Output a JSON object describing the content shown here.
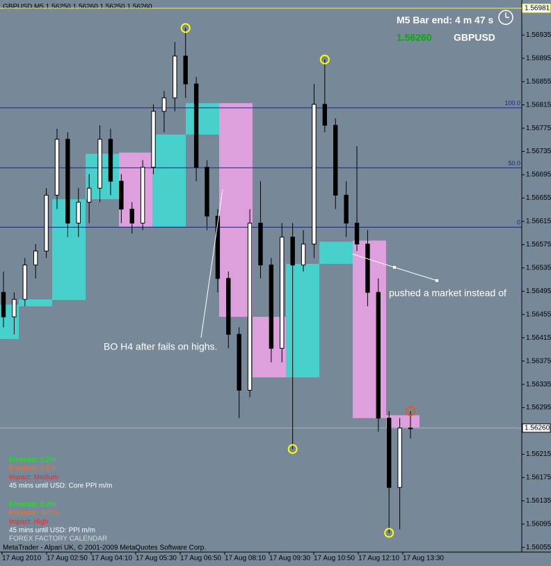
{
  "chart_data": {
    "type": "candlestick",
    "title": "GBPUSD,M5  1.56250 1.56260 1.56250 1.56260",
    "ylim": [
      1.56047,
      1.56988
    ],
    "yticks": [
      1.56935,
      1.56895,
      1.56855,
      1.56815,
      1.56775,
      1.56735,
      1.56695,
      1.56655,
      1.56615,
      1.56575,
      1.56535,
      1.56495,
      1.56455,
      1.56415,
      1.56375,
      1.56335,
      1.56295,
      1.56215,
      1.56175,
      1.56135,
      1.56095,
      1.56055
    ],
    "x_labels": [
      "17 Aug 2010",
      "17 Aug 02:50",
      "17 Aug 04:10",
      "17 Aug 05:30",
      "17 Aug 06:50",
      "17 Aug 08:10",
      "17 Aug 09:30",
      "17 Aug 10:50",
      "17 Aug 12:10",
      "17 Aug 13:30"
    ],
    "open": [
      1.56493,
      1.56451,
      1.56481,
      1.5654,
      1.56564,
      1.5666,
      1.56756,
      1.56612,
      1.56648,
      1.56672,
      1.56756,
      1.56684,
      1.56636,
      1.56612,
      1.56708,
      1.56804,
      1.56827,
      1.56899,
      1.56851,
      1.56708,
      1.56624,
      1.56517,
      1.56421,
      1.56325,
      1.56612,
      1.5654,
      1.56397,
      1.56588,
      1.5654,
      1.56576,
      1.56816,
      1.5678,
      1.5666,
      1.56612,
      1.56576,
      1.56493,
      1.56277,
      1.56158,
      1.5626
    ],
    "high": [
      1.56529,
      1.56493,
      1.56552,
      1.56576,
      1.56672,
      1.56774,
      1.56768,
      1.56672,
      1.56696,
      1.5678,
      1.56774,
      1.56696,
      1.56648,
      1.5672,
      1.56816,
      1.56839,
      1.56923,
      1.56947,
      1.56863,
      1.5672,
      1.56636,
      1.56529,
      1.56433,
      1.56636,
      1.56684,
      1.56552,
      1.56612,
      1.56612,
      1.566,
      1.56851,
      1.56893,
      1.56792,
      1.56684,
      1.56744,
      1.566,
      1.56517,
      1.56289,
      1.56277,
      1.56289
    ],
    "low": [
      1.56433,
      1.56421,
      1.56469,
      1.56517,
      1.56552,
      1.56636,
      1.56588,
      1.56588,
      1.56612,
      1.56648,
      1.5666,
      1.56612,
      1.56594,
      1.566,
      1.56696,
      1.56768,
      1.56804,
      1.56827,
      1.56684,
      1.566,
      1.56493,
      1.56397,
      1.56277,
      1.56313,
      1.56517,
      1.56373,
      1.56373,
      1.56224,
      1.56529,
      1.56552,
      1.56768,
      1.56636,
      1.56588,
      1.56564,
      1.56469,
      1.56254,
      1.5608,
      1.56086,
      1.56242
    ],
    "close": [
      1.56451,
      1.56481,
      1.5654,
      1.56564,
      1.5666,
      1.56756,
      1.56612,
      1.56648,
      1.56672,
      1.56756,
      1.56684,
      1.56636,
      1.56612,
      1.56708,
      1.56804,
      1.56827,
      1.56899,
      1.56851,
      1.56708,
      1.56624,
      1.56517,
      1.56421,
      1.56325,
      1.56612,
      1.5654,
      1.56397,
      1.56588,
      1.5654,
      1.56576,
      1.56816,
      1.5678,
      1.5666,
      1.56612,
      1.56576,
      1.56493,
      1.56277,
      1.56158,
      1.5626,
      1.5626
    ],
    "h1_open": [
      1.56413,
      1.56469,
      1.5648,
      1.56653,
      1.56733,
      1.56606,
      1.56764,
      1.56818,
      1.56451,
      1.56347,
      1.56542,
      1.56582,
      1.56282
    ],
    "h1_close": [
      1.56472,
      1.56481,
      1.56653,
      1.56731,
      1.56606,
      1.56764,
      1.56818,
      1.56451,
      1.56347,
      1.56542,
      1.5658,
      1.56277,
      1.56261
    ],
    "bull_color": "#48d1cc",
    "bear_color": "#dda0dd",
    "candle_color": "#000000",
    "levels": [
      {
        "value": 1.5681,
        "label": "100.0"
      },
      {
        "value": 1.56707,
        "label": "50.0"
      },
      {
        "value": 1.56605,
        "label": "0"
      }
    ],
    "level_color": "#1a237e",
    "top_line": 1.56981,
    "top_line_color": "#ffff00",
    "current_price": {
      "value": 1.5626,
      "label": "1.56260"
    },
    "info": {
      "bar_end": "M5 Bar end: 4 m 47 s",
      "bid": "1.56260",
      "symbol": "GBPUSD"
    },
    "annotations": [
      "pushed a market instead of",
      "BO H4 after fails on highs."
    ],
    "news": [
      {
        "text": "Forecast: 0.2%",
        "color": "#00ff00"
      },
      {
        "text": "Previous: 0.1%",
        "color": "#e8763a"
      },
      {
        "text": "Impact: Medium",
        "color": "#ff2020"
      },
      {
        "text": "45 mins until USD: Core PPI m/m",
        "color": "#ffffff"
      },
      {
        "text": "Forecast: 0.2%",
        "color": "#00ff00"
      },
      {
        "text": "Previous: -0.5%",
        "color": "#e8763a"
      },
      {
        "text": "Impact: High",
        "color": "#ff2020"
      },
      {
        "text": "45 mins until USD: PPI m/m",
        "color": "#ffffff"
      },
      {
        "text": "FOREX FACTORY CALENDAR",
        "color": "#d8d8d8"
      }
    ],
    "footer": "MetaTrader - Alpari UK, © 2001-2009 MetaQuotes Software Corp."
  }
}
